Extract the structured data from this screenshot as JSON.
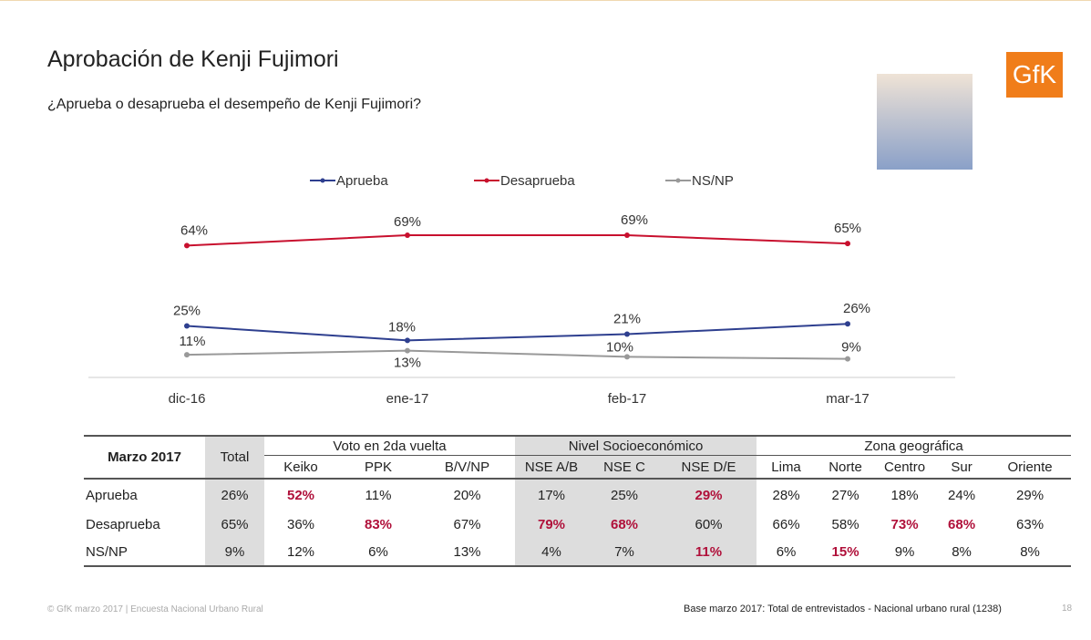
{
  "header": {
    "title": "Aprobación de Kenji Fujimori",
    "subtitle": "¿Aprueba o desaprueba el desempeño de Kenji Fujimori?",
    "logo": "GfK"
  },
  "chart_data": {
    "type": "line",
    "categories": [
      "dic-16",
      "ene-17",
      "feb-17",
      "mar-17"
    ],
    "series": [
      {
        "name": "Aprueba",
        "color": "#2e3f8f",
        "values": [
          25,
          18,
          21,
          26
        ],
        "value_labels": [
          "25%",
          "18%",
          "21%",
          "26%"
        ]
      },
      {
        "name": "Desaprueba",
        "color": "#c8102e",
        "values": [
          64,
          69,
          69,
          65
        ],
        "value_labels": [
          "64%",
          "69%",
          "69%",
          "65%"
        ]
      },
      {
        "name": "NS/NP",
        "color": "#999999",
        "values": [
          11,
          13,
          10,
          9
        ],
        "value_labels": [
          "11%",
          "13%",
          "10%",
          "9%"
        ]
      }
    ]
  },
  "table": {
    "corner": "Marzo 2017",
    "total": "Total",
    "groups": [
      {
        "label": "Voto en 2da vuelta",
        "columns": [
          "Keiko",
          "PPK",
          "B/V/NP"
        ]
      },
      {
        "label": "Nivel Socioeconómico",
        "columns": [
          "NSE A/B",
          "NSE C",
          "NSE D/E"
        ]
      },
      {
        "label": "Zona geográfica",
        "columns": [
          "Lima",
          "Norte",
          "Centro",
          "Sur",
          "Oriente"
        ]
      }
    ],
    "rows": [
      {
        "label": "Aprueba",
        "cells": [
          "26%",
          "52%",
          "11%",
          "20%",
          "17%",
          "25%",
          "29%",
          "28%",
          "27%",
          "18%",
          "24%",
          "29%"
        ],
        "highlight": [
          1,
          6
        ]
      },
      {
        "label": "Desaprueba",
        "cells": [
          "65%",
          "36%",
          "83%",
          "67%",
          "79%",
          "68%",
          "60%",
          "66%",
          "58%",
          "73%",
          "68%",
          "63%"
        ],
        "highlight": [
          2,
          4,
          5,
          9,
          10
        ]
      },
      {
        "label": "NS/NP",
        "cells": [
          "9%",
          "12%",
          "6%",
          "13%",
          "4%",
          "7%",
          "11%",
          "6%",
          "15%",
          "9%",
          "8%",
          "8%"
        ],
        "highlight": [
          6,
          8
        ]
      }
    ]
  },
  "footer": {
    "left": "© GfK marzo 2017 | Encuesta Nacional Urbano Rural",
    "right": "Base marzo 2017: Total de entrevistados - Nacional urbano rural (1238)",
    "page": "18"
  }
}
